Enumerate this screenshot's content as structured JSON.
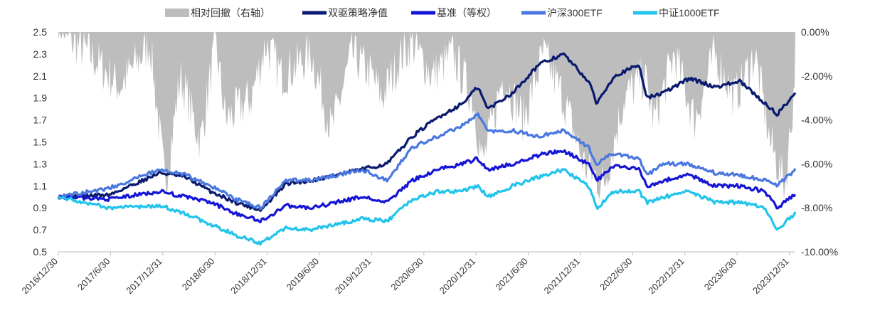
{
  "chart_data": {
    "type": "line",
    "title": "",
    "legend_position": "top",
    "legend": [
      "相对回撤（右轴）",
      "双驱策略净值",
      "基准（等权）",
      "沪深300ETF",
      "中证1000ETF"
    ],
    "x_tick_labels": [
      "2016/12/30",
      "2017/6/30",
      "2017/12/31",
      "2018/6/30",
      "2018/12/31",
      "2019/6/30",
      "2019/12/31",
      "2020/6/30",
      "2020/12/31",
      "2021/6/30",
      "2021/12/31",
      "2022/6/30",
      "2022/12/31",
      "2023/6/30",
      "2023/12/31"
    ],
    "x_range": [
      2016.99,
      2024.3
    ],
    "y_left": {
      "range": [
        0.5,
        2.5
      ],
      "ticks": [
        "0.5",
        "0.7",
        "0.9",
        "1.1",
        "1.3",
        "1.5",
        "1.7",
        "1.9",
        "2.1",
        "2.3",
        "2.5"
      ]
    },
    "y_right": {
      "range": [
        -10,
        0
      ],
      "ticks": [
        "-10.00%",
        "-8.00%",
        "-6.00%",
        "-4.00%",
        "-2.00%",
        "0.00%"
      ]
    },
    "x": [
      2016.99,
      2017.5,
      2018.0,
      2018.25,
      2018.5,
      2018.75,
      2019.0,
      2019.25,
      2019.5,
      2019.75,
      2020.0,
      2020.25,
      2020.5,
      2020.75,
      2021.0,
      2021.15,
      2021.25,
      2021.5,
      2021.75,
      2022.0,
      2022.25,
      2022.33,
      2022.5,
      2022.75,
      2022.83,
      2023.0,
      2023.25,
      2023.5,
      2023.75,
      2024.0,
      2024.12,
      2024.3
    ],
    "series": [
      {
        "name": "双驱策略净值",
        "color": "#0a1a6e",
        "values": [
          1.0,
          1.02,
          1.22,
          1.18,
          1.05,
          0.95,
          0.88,
          1.12,
          1.15,
          1.2,
          1.25,
          1.3,
          1.55,
          1.72,
          1.85,
          2.0,
          1.8,
          1.95,
          2.2,
          2.3,
          2.05,
          1.85,
          2.1,
          2.2,
          1.9,
          1.95,
          2.08,
          2.0,
          2.05,
          1.85,
          1.75,
          1.95
        ]
      },
      {
        "name": "基准（等权）",
        "color": "#1515d6",
        "values": [
          1.0,
          0.98,
          1.05,
          1.0,
          0.95,
          0.85,
          0.78,
          0.92,
          0.9,
          0.95,
          1.0,
          0.95,
          1.15,
          1.25,
          1.3,
          1.35,
          1.25,
          1.3,
          1.38,
          1.42,
          1.3,
          1.15,
          1.28,
          1.25,
          1.1,
          1.15,
          1.2,
          1.1,
          1.1,
          1.05,
          0.9,
          1.02
        ]
      },
      {
        "name": "沪深300ETF",
        "color": "#4a78e0",
        "values": [
          1.0,
          1.08,
          1.25,
          1.2,
          1.1,
          0.98,
          0.9,
          1.15,
          1.15,
          1.2,
          1.25,
          1.15,
          1.45,
          1.55,
          1.65,
          1.75,
          1.6,
          1.6,
          1.55,
          1.6,
          1.45,
          1.3,
          1.4,
          1.35,
          1.2,
          1.3,
          1.3,
          1.22,
          1.2,
          1.15,
          1.1,
          1.25
        ]
      },
      {
        "name": "中证1000ETF",
        "color": "#22c4ec",
        "values": [
          1.0,
          0.9,
          0.92,
          0.85,
          0.75,
          0.65,
          0.58,
          0.72,
          0.7,
          0.75,
          0.8,
          0.78,
          0.98,
          1.05,
          1.05,
          1.1,
          1.0,
          1.1,
          1.18,
          1.25,
          1.1,
          0.9,
          1.05,
          1.05,
          0.95,
          1.0,
          1.05,
          0.95,
          0.95,
          0.9,
          0.7,
          0.85
        ]
      }
    ],
    "drawdown": {
      "name": "相对回撤（右轴）",
      "color": "#bdbdbd",
      "unit": "%",
      "x": [
        2016.99,
        2017.3,
        2017.6,
        2017.9,
        2018.05,
        2018.2,
        2018.4,
        2018.55,
        2018.65,
        2018.9,
        2019.05,
        2019.2,
        2019.5,
        2019.7,
        2019.9,
        2020.1,
        2020.2,
        2020.4,
        2020.5,
        2020.7,
        2020.9,
        2021.1,
        2021.2,
        2021.4,
        2021.6,
        2021.8,
        2022.0,
        2022.2,
        2022.4,
        2022.6,
        2022.8,
        2022.9,
        2023.1,
        2023.3,
        2023.5,
        2023.7,
        2023.9,
        2024.05,
        2024.2,
        2024.3
      ],
      "values": [
        0,
        -1,
        -2.5,
        -0.5,
        -7,
        -2,
        -5,
        -0.5,
        -4,
        -3,
        -0.5,
        -2,
        -1,
        -4.5,
        -1,
        -2,
        -3,
        -1,
        -0.5,
        -2,
        -1,
        -3,
        -6,
        -2,
        -4,
        -1,
        -3,
        -6,
        -7,
        -3,
        -2,
        -4,
        -1,
        -4,
        -1,
        -3,
        -1,
        -5,
        -7,
        -2
      ]
    }
  }
}
